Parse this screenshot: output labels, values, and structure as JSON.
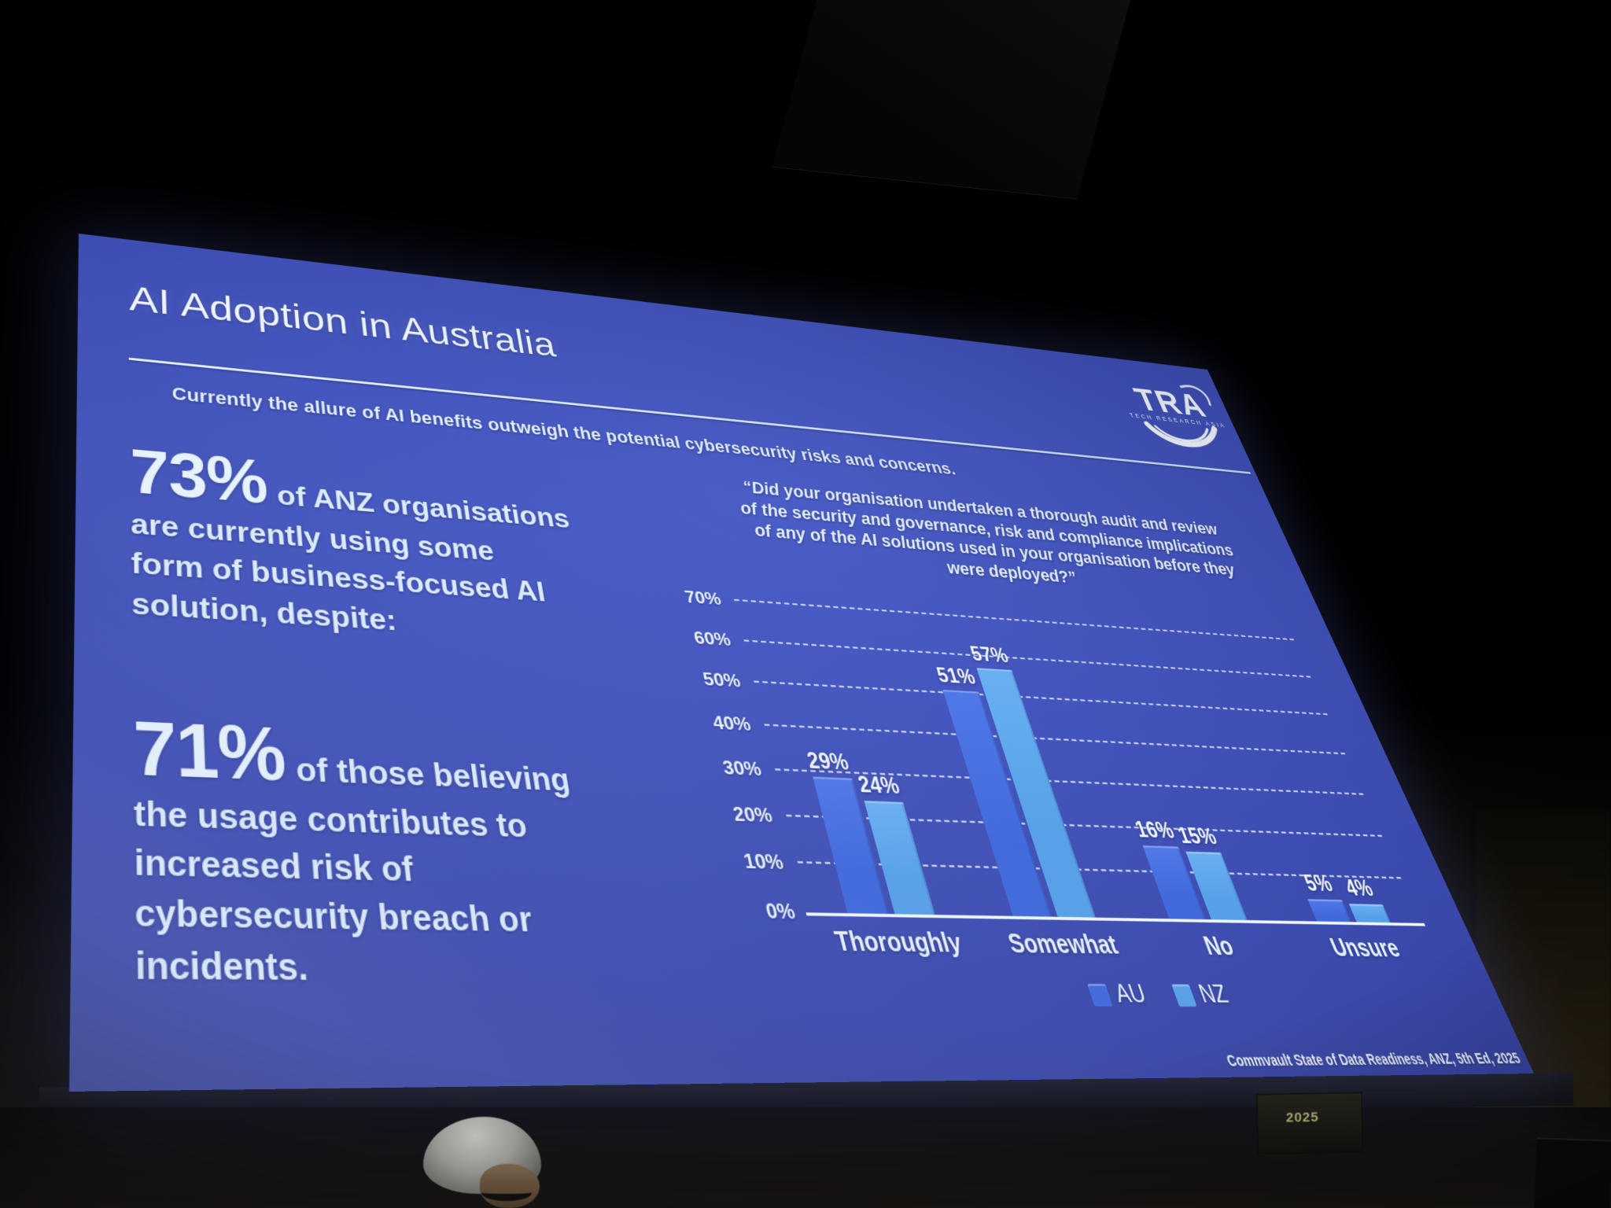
{
  "room": {
    "side_screen_text": "2025"
  },
  "slide": {
    "title": "AI Adoption in Australia",
    "subtitle": "Currently the allure of AI benefits outweigh the potential cybersecurity risks and concerns.",
    "logo": {
      "text": "TRA",
      "tagline": "TECH RESEARCH ASIA"
    },
    "stats": [
      {
        "value": "73%",
        "lines": [
          "of ANZ organisations",
          "are currently using some",
          "form of business-focused AI",
          "solution, despite:"
        ]
      },
      {
        "value": "71%",
        "lines": [
          "of those believing",
          "the usage contributes to",
          "increased risk of",
          "cybersecurity breach or",
          "incidents."
        ]
      }
    ],
    "source": "Commvault State of Data Readiness, ANZ, 5th Ed, 2025",
    "colors": {
      "background": "#3f4fb4",
      "text": "#e6f2fc"
    }
  },
  "chart_data": {
    "type": "bar",
    "title": "“Did your organisation undertaken a thorough audit and review of the security and governance, risk and compliance implications of any of the AI solutions used in your organisation before they were deployed?”",
    "title_lines": [
      "“Did your organisation undertaken a thorough audit and review",
      "of the security and governance, risk and compliance implications",
      "of any of the AI solutions used in your organisation before they",
      "were deployed?”"
    ],
    "categories": [
      "Thoroughly",
      "Somewhat",
      "No",
      "Unsure"
    ],
    "series": [
      {
        "name": "AU",
        "color": "#3f68dc",
        "color_light": "#5078e8",
        "values": [
          29,
          51,
          16,
          5
        ]
      },
      {
        "name": "NZ",
        "color": "#55a0e8",
        "color_light": "#69b0f2",
        "values": [
          24,
          57,
          15,
          4
        ]
      }
    ],
    "value_suffix": "%",
    "ylim": [
      0,
      70
    ],
    "yticks": [
      "0%",
      "10%",
      "20%",
      "30%",
      "40%",
      "50%",
      "60%",
      "70%"
    ],
    "grid": "horizontal-dashed",
    "legend_position": "bottom"
  }
}
